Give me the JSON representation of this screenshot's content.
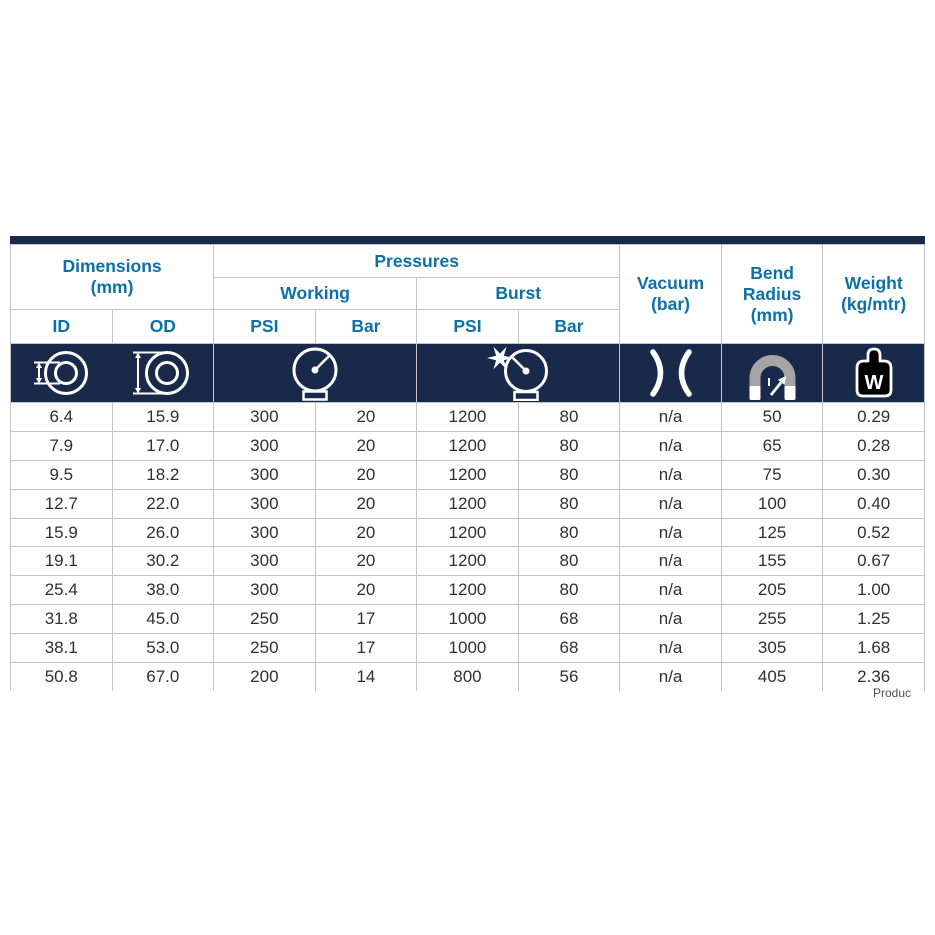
{
  "page": {
    "background_color": "#ffffff",
    "clipped_footer_text": "Produc"
  },
  "table": {
    "colors": {
      "navy": "#19294a",
      "header_text_blue": "#0d71a7",
      "cell_text": "#303030",
      "grid_line": "#c4c4c4",
      "bend_arc_gray": "#a5a5a5"
    },
    "group_headers": {
      "dimensions": "Dimensions\n(mm)",
      "pressures": "Pressures",
      "working": "Working",
      "burst": "Burst",
      "vacuum": "Vacuum\n(bar)",
      "bend_radius": "Bend\nRadius\n(mm)",
      "weight": "Weight\n(kg/mtr)"
    },
    "sub_headers": [
      "ID",
      "OD",
      "PSI",
      "Bar",
      "PSI",
      "Bar"
    ],
    "icons": {
      "dimensions_id": "hose-inner-diameter-icon",
      "dimensions_od": "hose-outer-diameter-icon",
      "working": "pressure-gauge-icon",
      "burst": "burst-pressure-gauge-icon",
      "vacuum": "vacuum-icon",
      "bend_radius": "bend-radius-icon",
      "weight": "weight-icon",
      "weight_glyph": "W"
    },
    "rows": [
      [
        "6.4",
        "15.9",
        "300",
        "20",
        "1200",
        "80",
        "n/a",
        "50",
        "0.29"
      ],
      [
        "7.9",
        "17.0",
        "300",
        "20",
        "1200",
        "80",
        "n/a",
        "65",
        "0.28"
      ],
      [
        "9.5",
        "18.2",
        "300",
        "20",
        "1200",
        "80",
        "n/a",
        "75",
        "0.30"
      ],
      [
        "12.7",
        "22.0",
        "300",
        "20",
        "1200",
        "80",
        "n/a",
        "100",
        "0.40"
      ],
      [
        "15.9",
        "26.0",
        "300",
        "20",
        "1200",
        "80",
        "n/a",
        "125",
        "0.52"
      ],
      [
        "19.1",
        "30.2",
        "300",
        "20",
        "1200",
        "80",
        "n/a",
        "155",
        "0.67"
      ],
      [
        "25.4",
        "38.0",
        "300",
        "20",
        "1200",
        "80",
        "n/a",
        "205",
        "1.00"
      ],
      [
        "31.8",
        "45.0",
        "250",
        "17",
        "1000",
        "68",
        "n/a",
        "255",
        "1.25"
      ],
      [
        "38.1",
        "53.0",
        "250",
        "17",
        "1000",
        "68",
        "n/a",
        "305",
        "1.68"
      ],
      [
        "50.8",
        "67.0",
        "200",
        "14",
        "800",
        "56",
        "n/a",
        "405",
        "2.36"
      ]
    ]
  }
}
